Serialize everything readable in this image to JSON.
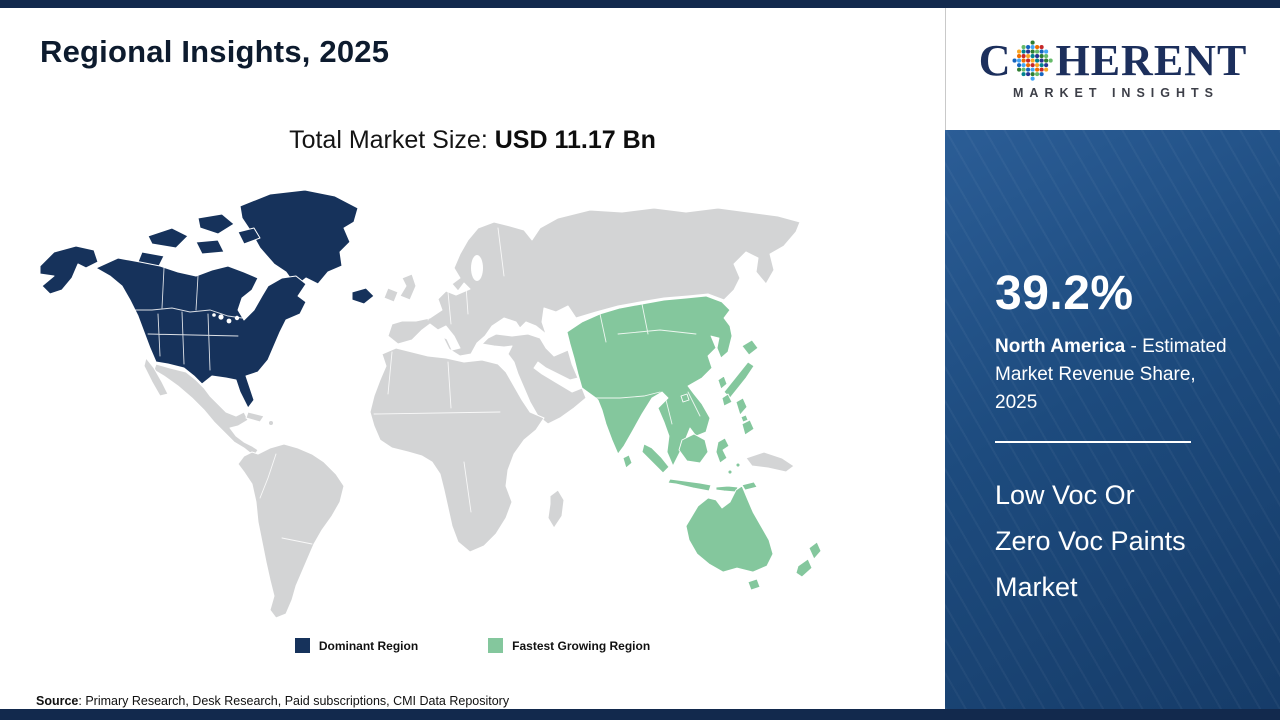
{
  "header": {
    "title": "Regional Insights, 2025"
  },
  "market": {
    "size_label": "Total Market Size:",
    "size_value": "USD 11.17 Bn"
  },
  "logo": {
    "part1": "C",
    "part2": "HERENT",
    "tagline": "MARKET INSIGHTS"
  },
  "legend": {
    "dominant_label": "Dominant Region",
    "fastest_label": "Fastest Growing Region"
  },
  "sidebar": {
    "share_value": "39.2%",
    "region": "North America",
    "share_caption": "- Estimated Market Revenue Share, 2025",
    "market_name": "Low Voc Or\nZero Voc Paints\nMarket"
  },
  "source": {
    "label": "Source",
    "text": ": Primary Research, Desk Research, Paid subscriptions, CMI Data Repository"
  },
  "colors": {
    "dominant": "#16325b",
    "fastest": "#84c79d",
    "map_base": "#d3d4d5",
    "panel": "#1d4b7e",
    "navy_bar": "#12294d",
    "logo_navy": "#1c2f5c"
  }
}
